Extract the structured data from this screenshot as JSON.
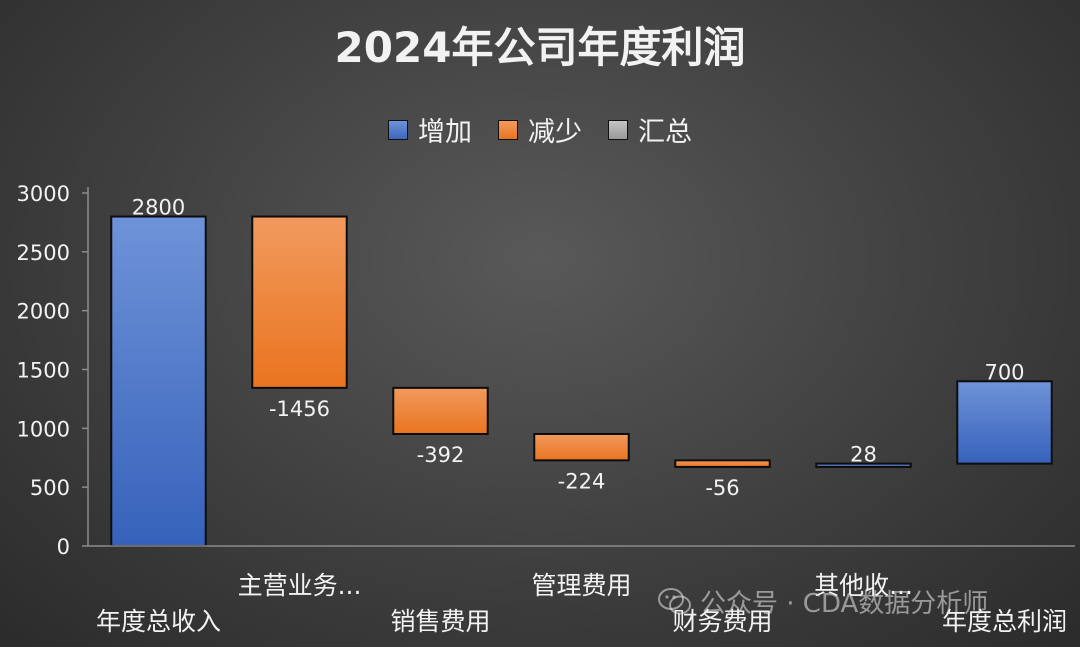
{
  "chart_data": {
    "type": "bar",
    "title": "2024年公司年度利润",
    "categories": [
      "年度总收入",
      "主营业务...",
      "销售费用",
      "管理费用",
      "财务费用",
      "其他收...",
      "年度总利润"
    ],
    "bars": [
      {
        "category": "年度总收入",
        "base": 0,
        "top": 2800,
        "label": "2800",
        "kind": "increase"
      },
      {
        "category": "主营业务...",
        "base": 1344,
        "top": 2800,
        "label": "-1456",
        "kind": "decrease"
      },
      {
        "category": "销售费用",
        "base": 952,
        "top": 1344,
        "label": "-392",
        "kind": "decrease"
      },
      {
        "category": "管理费用",
        "base": 728,
        "top": 952,
        "label": "-224",
        "kind": "decrease"
      },
      {
        "category": "财务费用",
        "base": 672,
        "top": 728,
        "label": "-56",
        "kind": "decrease"
      },
      {
        "category": "其他收...",
        "base": 672,
        "top": 700,
        "label": "28",
        "kind": "increase"
      },
      {
        "category": "年度总利润",
        "base": 700,
        "top": 1400,
        "label": "700",
        "kind": "increase"
      }
    ],
    "y_ticks": [
      "0",
      "500",
      "1000",
      "1500",
      "2000",
      "2500",
      "3000"
    ],
    "ylim": [
      0,
      3000
    ],
    "grid": false,
    "legend": {
      "position": "top-center",
      "items": [
        {
          "name": "增加",
          "color": "#4472c4"
        },
        {
          "name": "减少",
          "color": "#ed7d31"
        },
        {
          "name": "汇总",
          "color": "#a5a5a5"
        }
      ]
    },
    "colors": {
      "increase": "#4472c4",
      "decrease": "#ed7d31",
      "total": "#a5a5a5"
    }
  },
  "watermark": {
    "text": "公众号 · CDA数据分析师",
    "icon": "wechat-icon"
  }
}
